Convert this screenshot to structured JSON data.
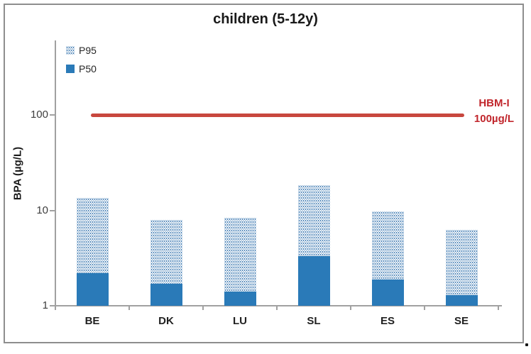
{
  "title": "children (5-12y)",
  "y_axis": {
    "label": "BPA (µg/L)",
    "ticks": [
      {
        "value": 100,
        "label": "100"
      },
      {
        "value": 10,
        "label": "10"
      },
      {
        "value": 1,
        "label": "1"
      }
    ]
  },
  "legend": [
    {
      "label": "P95",
      "style": "dotted"
    },
    {
      "label": "P50",
      "style": "solid"
    }
  ],
  "reference_line": {
    "value": 100,
    "label_line1": "HBM-I",
    "label_line2": "100µg/L",
    "color": "#c8473e"
  },
  "colors": {
    "bar_solid": "#2a7ab8",
    "bar_dot": "#1e64a5",
    "axis": "#a1a1a1",
    "red_line": "#c8473e",
    "red_text": "#c1262c"
  },
  "misc": {
    "stray_period": "."
  },
  "chart_data": {
    "type": "bar",
    "subtype": "overlapped",
    "title": "children (5-12y)",
    "xlabel": "",
    "ylabel": "BPA (µg/L)",
    "yscale": "log",
    "ylim": [
      1,
      600
    ],
    "yticks": [
      1,
      10,
      100
    ],
    "grid": false,
    "legend_position": "top-left-inside",
    "categories": [
      "BE",
      "DK",
      "LU",
      "SL",
      "ES",
      "SE"
    ],
    "series": [
      {
        "name": "P95",
        "style": "dotted",
        "values": [
          13.5,
          8.0,
          8.3,
          18.5,
          9.8,
          6.2
        ]
      },
      {
        "name": "P50",
        "style": "solid",
        "values": [
          2.2,
          1.7,
          1.4,
          3.3,
          1.9,
          1.3
        ]
      }
    ],
    "reference_line": {
      "y": 100,
      "label": "HBM-I 100µg/L"
    }
  }
}
